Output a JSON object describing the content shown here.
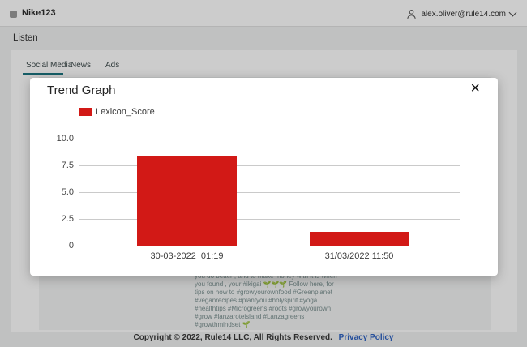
{
  "topbar": {
    "brand": "Nike123",
    "account_email": "alex.oliver@rule14.com"
  },
  "page": {
    "section_title": "Listen",
    "tabs": [
      {
        "label": "Social Media",
        "active": true
      },
      {
        "label": "News",
        "active": false
      },
      {
        "label": "Ads",
        "active": false
      }
    ]
  },
  "post": {
    "lines": [
      "you do better , and to make money with it is when",
      "you found , your #ikigai 🌱🌱🌱 Follow here, for",
      "tips on how to #growyourownfood #Greenplanet",
      "#veganrecipes #plantyou #holyspirit #yoga",
      "#healthtips #Microgreens #roots #growyourown",
      "#grow #lanzaroteisland #Lanzagreens",
      "#growthmindset 🌱"
    ]
  },
  "modal": {
    "title": "Trend Graph",
    "close_icon": "×"
  },
  "chart_data": {
    "type": "bar",
    "title": "Trend Graph",
    "categories": [
      "30-03-2022  01:19",
      "31/03/2022 11:50"
    ],
    "series": [
      {
        "name": "Lexicon_Score",
        "values": [
          8.3,
          1.3
        ]
      }
    ],
    "legend": [
      {
        "label": "Lexicon_Score",
        "color": "#d21916"
      }
    ],
    "ytick_labels": [
      "10.0",
      "7.5",
      "5.0",
      "2.5",
      "0"
    ],
    "ylim": [
      0,
      10
    ],
    "grid": true,
    "legend_position": "top-left",
    "bar_color": "#d21916"
  },
  "footer": {
    "copyright": "Copyright © 2022, Rule14 LLC, All Rights Reserved.",
    "privacy_link": "Privacy Policy"
  },
  "colors": {
    "bar_red": "#d21916",
    "accent_teal": "#1b7580",
    "link_blue": "#2e62c2"
  }
}
